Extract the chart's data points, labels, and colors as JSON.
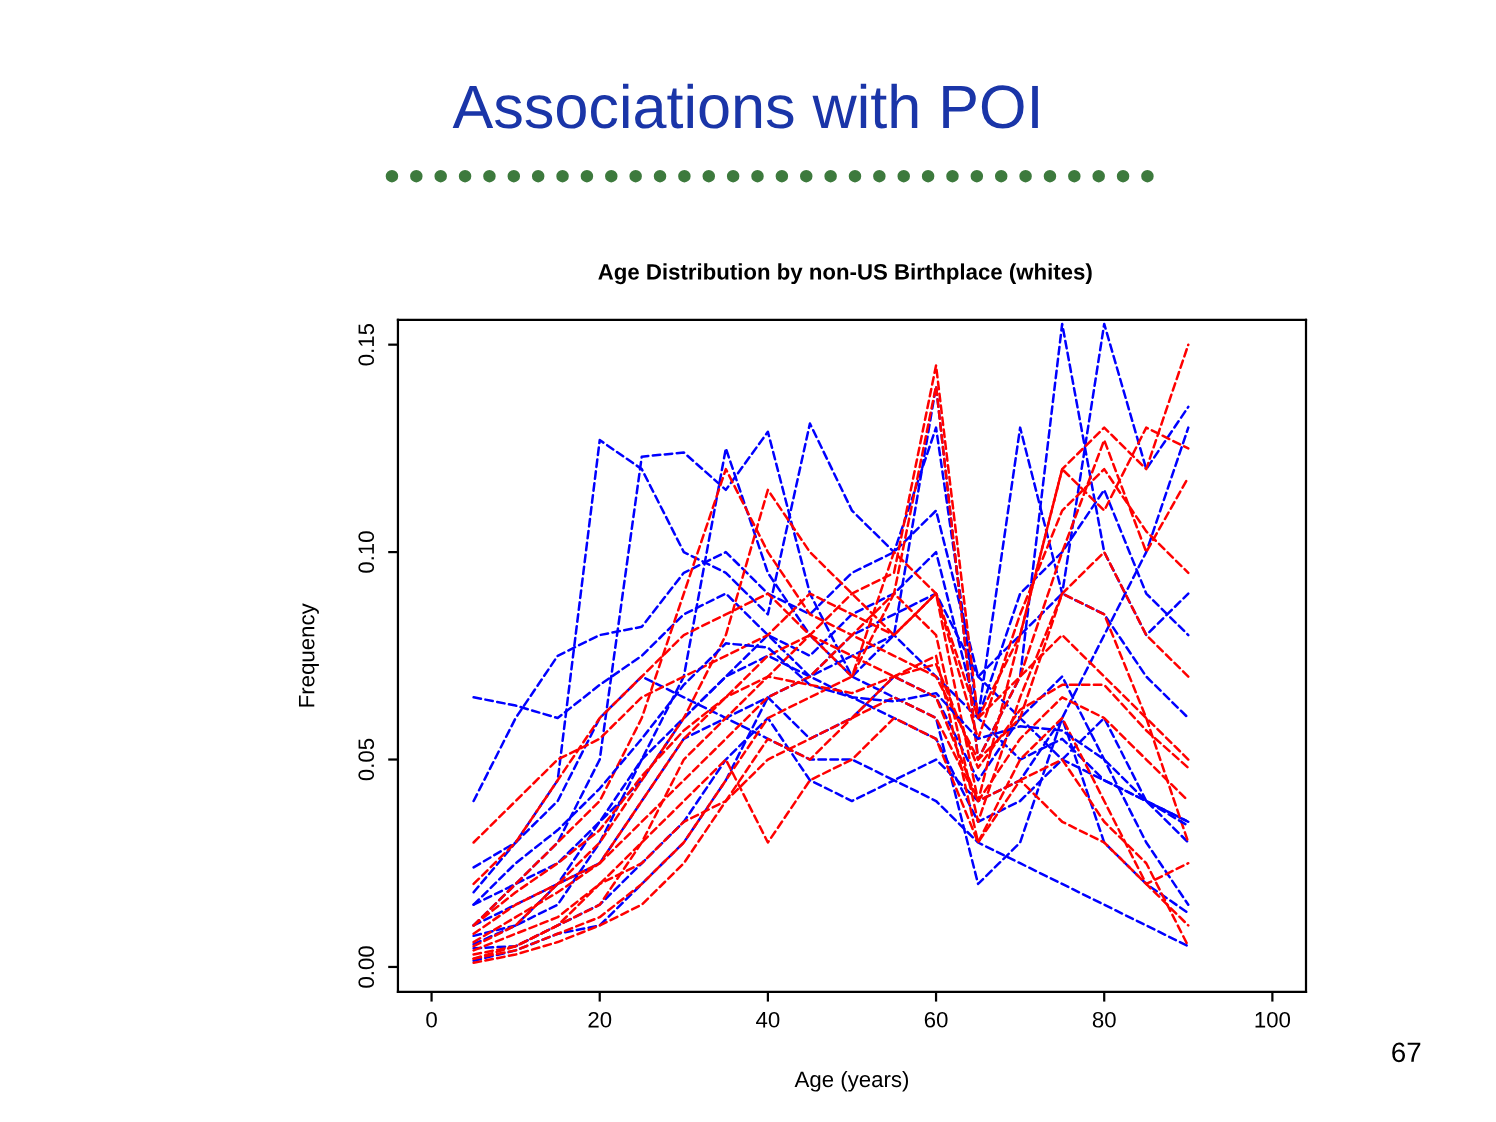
{
  "chart_data": {
    "type": "line",
    "title": "Associations with POI",
    "subtitle": "Age Distribution by non-US Birthplace (whites)",
    "xlabel": "Age (years)",
    "ylabel": "Frequency",
    "annotations": [
      "67"
    ],
    "x": [
      5,
      10,
      15,
      20,
      25,
      30,
      35,
      40,
      45,
      50,
      55,
      60,
      65,
      70,
      75,
      80,
      85,
      90
    ],
    "xlim": [
      -4,
      104
    ],
    "xticks": [
      0,
      20,
      40,
      60,
      80,
      100
    ],
    "ylim": [
      -0.006,
      0.156
    ],
    "yticks": [
      {
        "value": 0,
        "label": "0.00"
      },
      {
        "value": 0.05,
        "label": "0.05"
      },
      {
        "value": 0.1,
        "label": "0.10"
      },
      {
        "value": 0.15,
        "label": "0.15"
      }
    ],
    "grid": false,
    "line_style": "dashed",
    "marker": "none",
    "series": [
      {
        "color": "#0000ff",
        "values": [
          0.065,
          0.063,
          0.06,
          0.068,
          0.075,
          0.085,
          0.09,
          0.08,
          0.07,
          0.075,
          0.08,
          0.07,
          0.06,
          0.05,
          0.055,
          0.045,
          0.04,
          0.035
        ]
      },
      {
        "color": "#0000ff",
        "values": [
          0.04,
          0.06,
          0.075,
          0.08,
          0.082,
          0.095,
          0.1,
          0.09,
          0.085,
          0.095,
          0.1,
          0.11,
          0.07,
          0.08,
          0.09,
          0.085,
          0.07,
          0.06
        ]
      },
      {
        "color": "#0000ff",
        "values": [
          0.018,
          0.03,
          0.045,
          0.127,
          0.12,
          0.1,
          0.095,
          0.085,
          0.131,
          0.11,
          0.1,
          0.13,
          0.06,
          0.13,
          0.09,
          0.155,
          0.12,
          0.135
        ]
      },
      {
        "color": "#0000ff",
        "values": [
          0.01,
          0.02,
          0.03,
          0.05,
          0.123,
          0.124,
          0.115,
          0.129,
          0.09,
          0.07,
          0.08,
          0.14,
          0.05,
          0.07,
          0.155,
          0.1,
          0.08,
          0.09
        ]
      },
      {
        "color": "#0000ff",
        "values": [
          0.0055,
          0.01,
          0.015,
          0.03,
          0.05,
          0.07,
          0.125,
          0.095,
          0.08,
          0.07,
          0.065,
          0.06,
          0.02,
          0.03,
          0.06,
          0.08,
          0.1,
          0.13
        ]
      },
      {
        "color": "#0000ff",
        "values": [
          0.01,
          0.015,
          0.02,
          0.025,
          0.04,
          0.055,
          0.06,
          0.065,
          0.055,
          0.06,
          0.07,
          0.065,
          0.045,
          0.06,
          0.07,
          0.05,
          0.03,
          0.015
        ]
      },
      {
        "color": "#0000ff",
        "values": [
          0.015,
          0.02,
          0.025,
          0.035,
          0.045,
          0.06,
          0.07,
          0.075,
          0.07,
          0.065,
          0.06,
          0.055,
          0.035,
          0.04,
          0.05,
          0.06,
          0.04,
          0.035
        ]
      },
      {
        "color": "#0000ff",
        "values": [
          0.0045,
          0.005,
          0.01,
          0.015,
          0.025,
          0.035,
          0.05,
          0.06,
          0.045,
          0.04,
          0.045,
          0.04,
          0.03,
          0.025,
          0.02,
          0.015,
          0.01,
          0.005
        ]
      },
      {
        "color": "#0000ff",
        "values": [
          0.024,
          0.03,
          0.04,
          0.06,
          0.07,
          0.065,
          0.06,
          0.055,
          0.05,
          0.05,
          0.045,
          0.05,
          0.04,
          0.045,
          0.06,
          0.03,
          0.02,
          0.013
        ]
      },
      {
        "color": "#0000ff",
        "values": [
          0.0075,
          0.01,
          0.02,
          0.035,
          0.05,
          0.06,
          0.07,
          0.08,
          0.075,
          0.085,
          0.09,
          0.1,
          0.06,
          0.09,
          0.1,
          0.115,
          0.09,
          0.08
        ]
      },
      {
        "color": "#0000ff",
        "values": [
          0.0015,
          0.004,
          0.008,
          0.01,
          0.02,
          0.03,
          0.045,
          0.065,
          0.07,
          0.08,
          0.085,
          0.09,
          0.07,
          0.06,
          0.05,
          0.045,
          0.04,
          0.03
        ]
      },
      {
        "color": "#ff0000",
        "values": [
          0.003,
          0.005,
          0.01,
          0.015,
          0.03,
          0.05,
          0.06,
          0.07,
          0.08,
          0.09,
          0.095,
          0.145,
          0.06,
          0.08,
          0.12,
          0.13,
          0.12,
          0.15
        ]
      },
      {
        "color": "#ff0000",
        "values": [
          0.01,
          0.02,
          0.03,
          0.04,
          0.06,
          0.09,
          0.12,
          0.1,
          0.085,
          0.08,
          0.09,
          0.14,
          0.05,
          0.07,
          0.1,
          0.127,
          0.1,
          0.118
        ]
      },
      {
        "color": "#ff0000",
        "values": [
          0.005,
          0.01,
          0.02,
          0.03,
          0.045,
          0.06,
          0.08,
          0.115,
          0.1,
          0.09,
          0.08,
          0.09,
          0.04,
          0.08,
          0.12,
          0.11,
          0.13,
          0.125
        ]
      },
      {
        "color": "#ff0000",
        "values": [
          0.002,
          0.004,
          0.008,
          0.012,
          0.02,
          0.03,
          0.045,
          0.06,
          0.065,
          0.07,
          0.09,
          0.08,
          0.035,
          0.065,
          0.09,
          0.085,
          0.06,
          0.03
        ]
      },
      {
        "color": "#ff0000",
        "values": [
          0.02,
          0.03,
          0.045,
          0.06,
          0.07,
          0.08,
          0.085,
          0.09,
          0.08,
          0.075,
          0.07,
          0.065,
          0.04,
          0.055,
          0.065,
          0.06,
          0.05,
          0.04
        ]
      },
      {
        "color": "#ff0000",
        "values": [
          0.001,
          0.003,
          0.006,
          0.01,
          0.015,
          0.025,
          0.04,
          0.055,
          0.05,
          0.06,
          0.07,
          0.075,
          0.03,
          0.05,
          0.06,
          0.04,
          0.02,
          0.01
        ]
      },
      {
        "color": "#ff0000",
        "values": [
          0.008,
          0.015,
          0.02,
          0.025,
          0.035,
          0.045,
          0.055,
          0.065,
          0.07,
          0.08,
          0.075,
          0.07,
          0.05,
          0.06,
          0.09,
          0.1,
          0.08,
          0.07
        ]
      },
      {
        "color": "#ff0000",
        "values": [
          0.004,
          0.008,
          0.012,
          0.02,
          0.03,
          0.04,
          0.05,
          0.03,
          0.045,
          0.05,
          0.06,
          0.055,
          0.03,
          0.045,
          0.05,
          0.035,
          0.025,
          0.005
        ]
      },
      {
        "color": "#ff0000",
        "values": [
          0.03,
          0.04,
          0.05,
          0.055,
          0.065,
          0.07,
          0.075,
          0.08,
          0.09,
          0.085,
          0.08,
          0.09,
          0.06,
          0.07,
          0.08,
          0.07,
          0.06,
          0.05
        ]
      },
      {
        "color": "#ff0000",
        "values": [
          0.006,
          0.012,
          0.018,
          0.025,
          0.04,
          0.055,
          0.065,
          0.075,
          0.08,
          0.07,
          0.1,
          0.09,
          0.055,
          0.085,
          0.11,
          0.12,
          0.105,
          0.095
        ]
      },
      {
        "color": "#ff0000",
        "values": [
          0.002,
          0.005,
          0.01,
          0.02,
          0.025,
          0.035,
          0.04,
          0.05,
          0.055,
          0.06,
          0.065,
          0.06,
          0.04,
          0.045,
          0.035,
          0.03,
          0.02,
          0.025
        ]
      },
      {
        "color": "#0000ff",
        "values": [
          0.015,
          0.025,
          0.033,
          0.043,
          0.055,
          0.068,
          0.078,
          0.077,
          0.068,
          0.065,
          0.064,
          0.066,
          0.055,
          0.058,
          0.057,
          0.05,
          0.04,
          0.034
        ]
      },
      {
        "color": "#ff0000",
        "values": [
          0.01,
          0.018,
          0.025,
          0.033,
          0.046,
          0.057,
          0.065,
          0.07,
          0.068,
          0.066,
          0.07,
          0.073,
          0.048,
          0.062,
          0.068,
          0.068,
          0.057,
          0.048
        ]
      }
    ]
  }
}
